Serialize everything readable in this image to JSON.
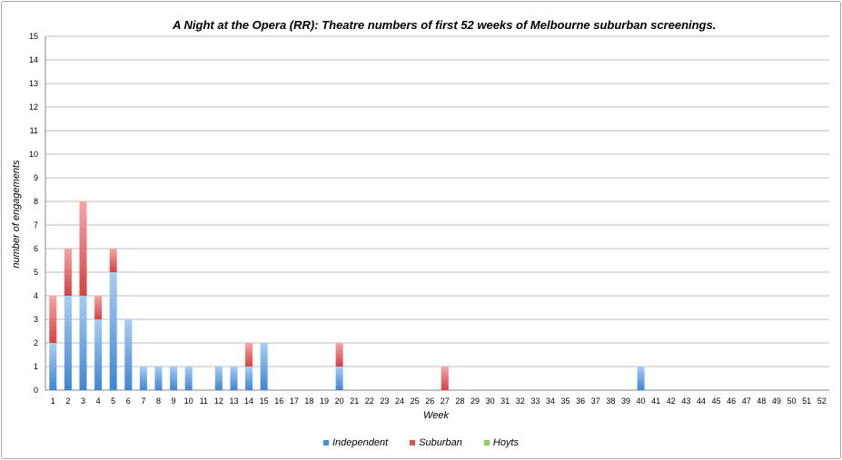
{
  "chart_data": {
    "type": "bar",
    "stacked": true,
    "title": "A Night at the Opera (RR): Theatre numbers of first 52 weeks of Melbourne suburban screenings.",
    "xlabel": "Week",
    "ylabel": "number of engagements",
    "ylim": [
      0,
      15
    ],
    "yticks": [
      "0",
      "1",
      "2",
      "3",
      "4",
      "5",
      "6",
      "7",
      "8",
      "9",
      "10",
      "11",
      "12",
      "13",
      "14",
      "15"
    ],
    "grid": true,
    "legend_position": "bottom",
    "categories": [
      "1",
      "2",
      "3",
      "4",
      "5",
      "6",
      "7",
      "8",
      "9",
      "10",
      "11",
      "12",
      "13",
      "14",
      "15",
      "16",
      "17",
      "18",
      "19",
      "20",
      "21",
      "22",
      "23",
      "24",
      "25",
      "26",
      "27",
      "28",
      "29",
      "30",
      "31",
      "32",
      "33",
      "34",
      "35",
      "36",
      "37",
      "38",
      "39",
      "40",
      "41",
      "42",
      "43",
      "44",
      "45",
      "46",
      "47",
      "48",
      "49",
      "50",
      "51",
      "52"
    ],
    "series": [
      {
        "name": "Independent",
        "color": "#4a90d9",
        "values": [
          2,
          4,
          4,
          3,
          5,
          3,
          1,
          1,
          1,
          1,
          0,
          1,
          1,
          1,
          2,
          0,
          0,
          0,
          0,
          1,
          0,
          0,
          0,
          0,
          0,
          0,
          0,
          0,
          0,
          0,
          0,
          0,
          0,
          0,
          0,
          0,
          0,
          0,
          0,
          1,
          0,
          0,
          0,
          0,
          0,
          0,
          0,
          0,
          0,
          0,
          0,
          0
        ]
      },
      {
        "name": "Suburban",
        "color": "#e05050",
        "values": [
          2,
          2,
          4,
          1,
          1,
          0,
          0,
          0,
          0,
          0,
          0,
          0,
          0,
          1,
          0,
          0,
          0,
          0,
          0,
          1,
          0,
          0,
          0,
          0,
          0,
          0,
          1,
          0,
          0,
          0,
          0,
          0,
          0,
          0,
          0,
          0,
          0,
          0,
          0,
          0,
          0,
          0,
          0,
          0,
          0,
          0,
          0,
          0,
          0,
          0,
          0,
          0
        ]
      },
      {
        "name": "Hoyts",
        "color": "#8cd454",
        "values": [
          0,
          0,
          0,
          0,
          0,
          0,
          0,
          0,
          0,
          0,
          0,
          0,
          0,
          0,
          0,
          0,
          0,
          0,
          0,
          0,
          0,
          0,
          0,
          0,
          0,
          0,
          0,
          0,
          0,
          0,
          0,
          0,
          0,
          0,
          0,
          0,
          0,
          0,
          0,
          0,
          0,
          0,
          0,
          0,
          0,
          0,
          0,
          0,
          0,
          0,
          0,
          0
        ]
      }
    ]
  }
}
